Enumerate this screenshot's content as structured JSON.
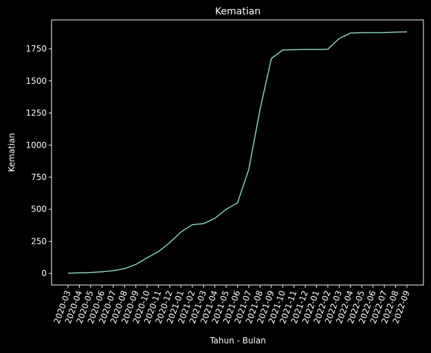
{
  "chart_data": {
    "type": "line",
    "title": "Kematian",
    "xlabel": "Tahun - Bulan",
    "ylabel": "Kematian",
    "ylim": [
      -90,
      1975
    ],
    "yticks": [
      0,
      250,
      500,
      750,
      1000,
      1250,
      1500,
      1750
    ],
    "grid": false,
    "line_color": "#8dd3c7",
    "background_color": "#000000",
    "x": [
      "2020-03",
      "2020-04",
      "2020-05",
      "2020-06",
      "2020-07",
      "2020-08",
      "2020-09",
      "2020-10",
      "2020-11",
      "2020-12",
      "2021-01",
      "2021-02",
      "2021-03",
      "2021-04",
      "2021-05",
      "2021-06",
      "2021-07",
      "2021-08",
      "2021-09",
      "2021-10",
      "2021-11",
      "2021-12",
      "2022-01",
      "2022-02",
      "2022-03",
      "2022-04",
      "2022-05",
      "2022-06",
      "2022-07",
      "2022-08",
      "2022-09"
    ],
    "values": [
      2,
      5,
      8,
      13,
      22,
      38,
      70,
      122,
      170,
      240,
      323,
      380,
      388,
      430,
      500,
      550,
      810,
      1280,
      1675,
      1740,
      1743,
      1745,
      1745,
      1747,
      1830,
      1873,
      1876,
      1876,
      1876,
      1880,
      1882
    ]
  }
}
